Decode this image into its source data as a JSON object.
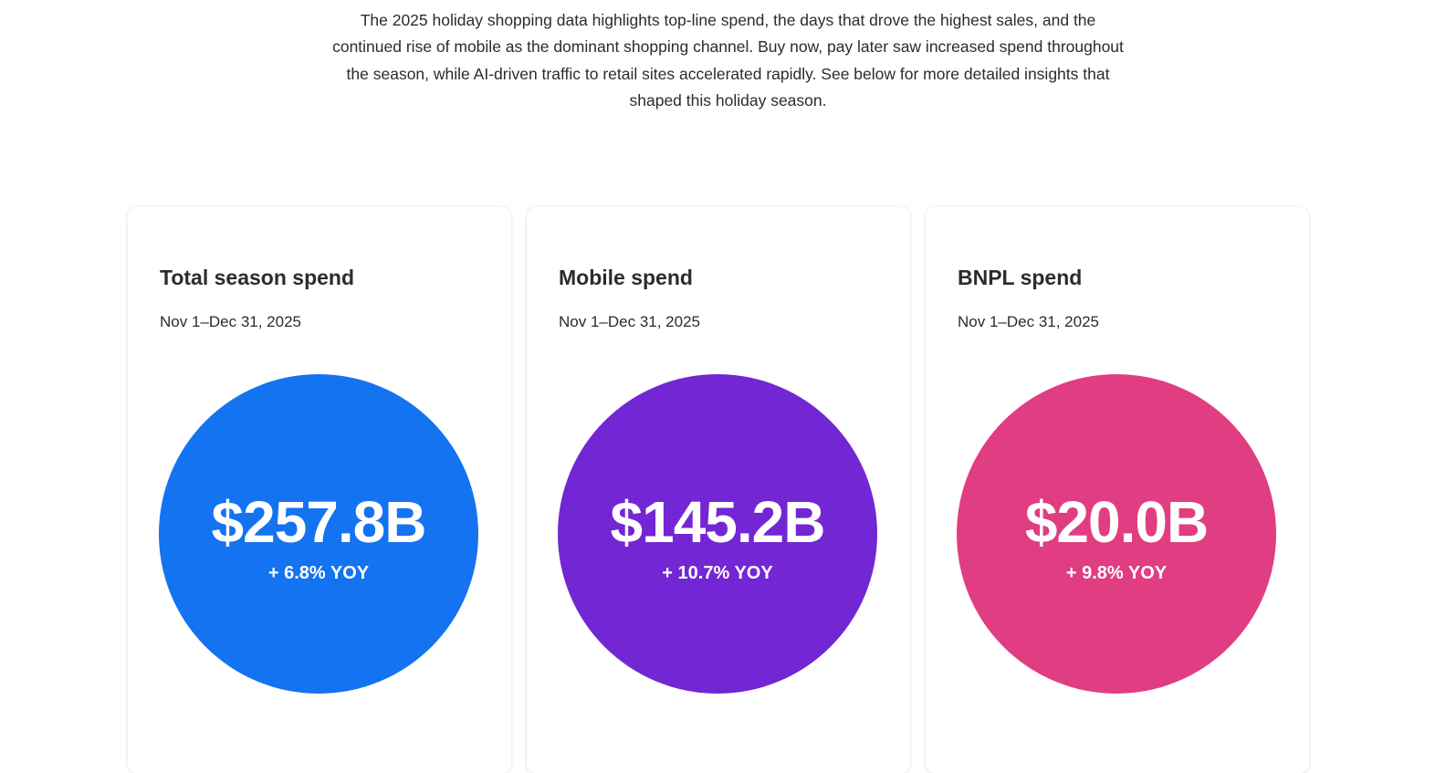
{
  "intro": {
    "text": "The 2025 holiday shopping data highlights top-line spend, the days that drove the highest sales, and the continued rise of mobile as the dominant shopping channel. Buy now, pay later saw increased spend throughout the season, while AI-driven traffic to retail sites accelerated rapidly. See below for more detailed insights that shaped this holiday season."
  },
  "cards": [
    {
      "title": "Total season spend",
      "date": "Nov 1–Dec 31, 2025",
      "value": "$257.8B",
      "change": "+ 6.8% YOY",
      "color": "#1473f0"
    },
    {
      "title": "Mobile spend",
      "date": "Nov 1–Dec 31, 2025",
      "value": "$145.2B",
      "change": "+ 10.7% YOY",
      "color": "#7326d3"
    },
    {
      "title": "BNPL spend",
      "date": "Nov 1–Dec 31, 2025",
      "value": "$20.0B",
      "change": "+ 9.8% YOY",
      "color": "#e03d82"
    }
  ]
}
